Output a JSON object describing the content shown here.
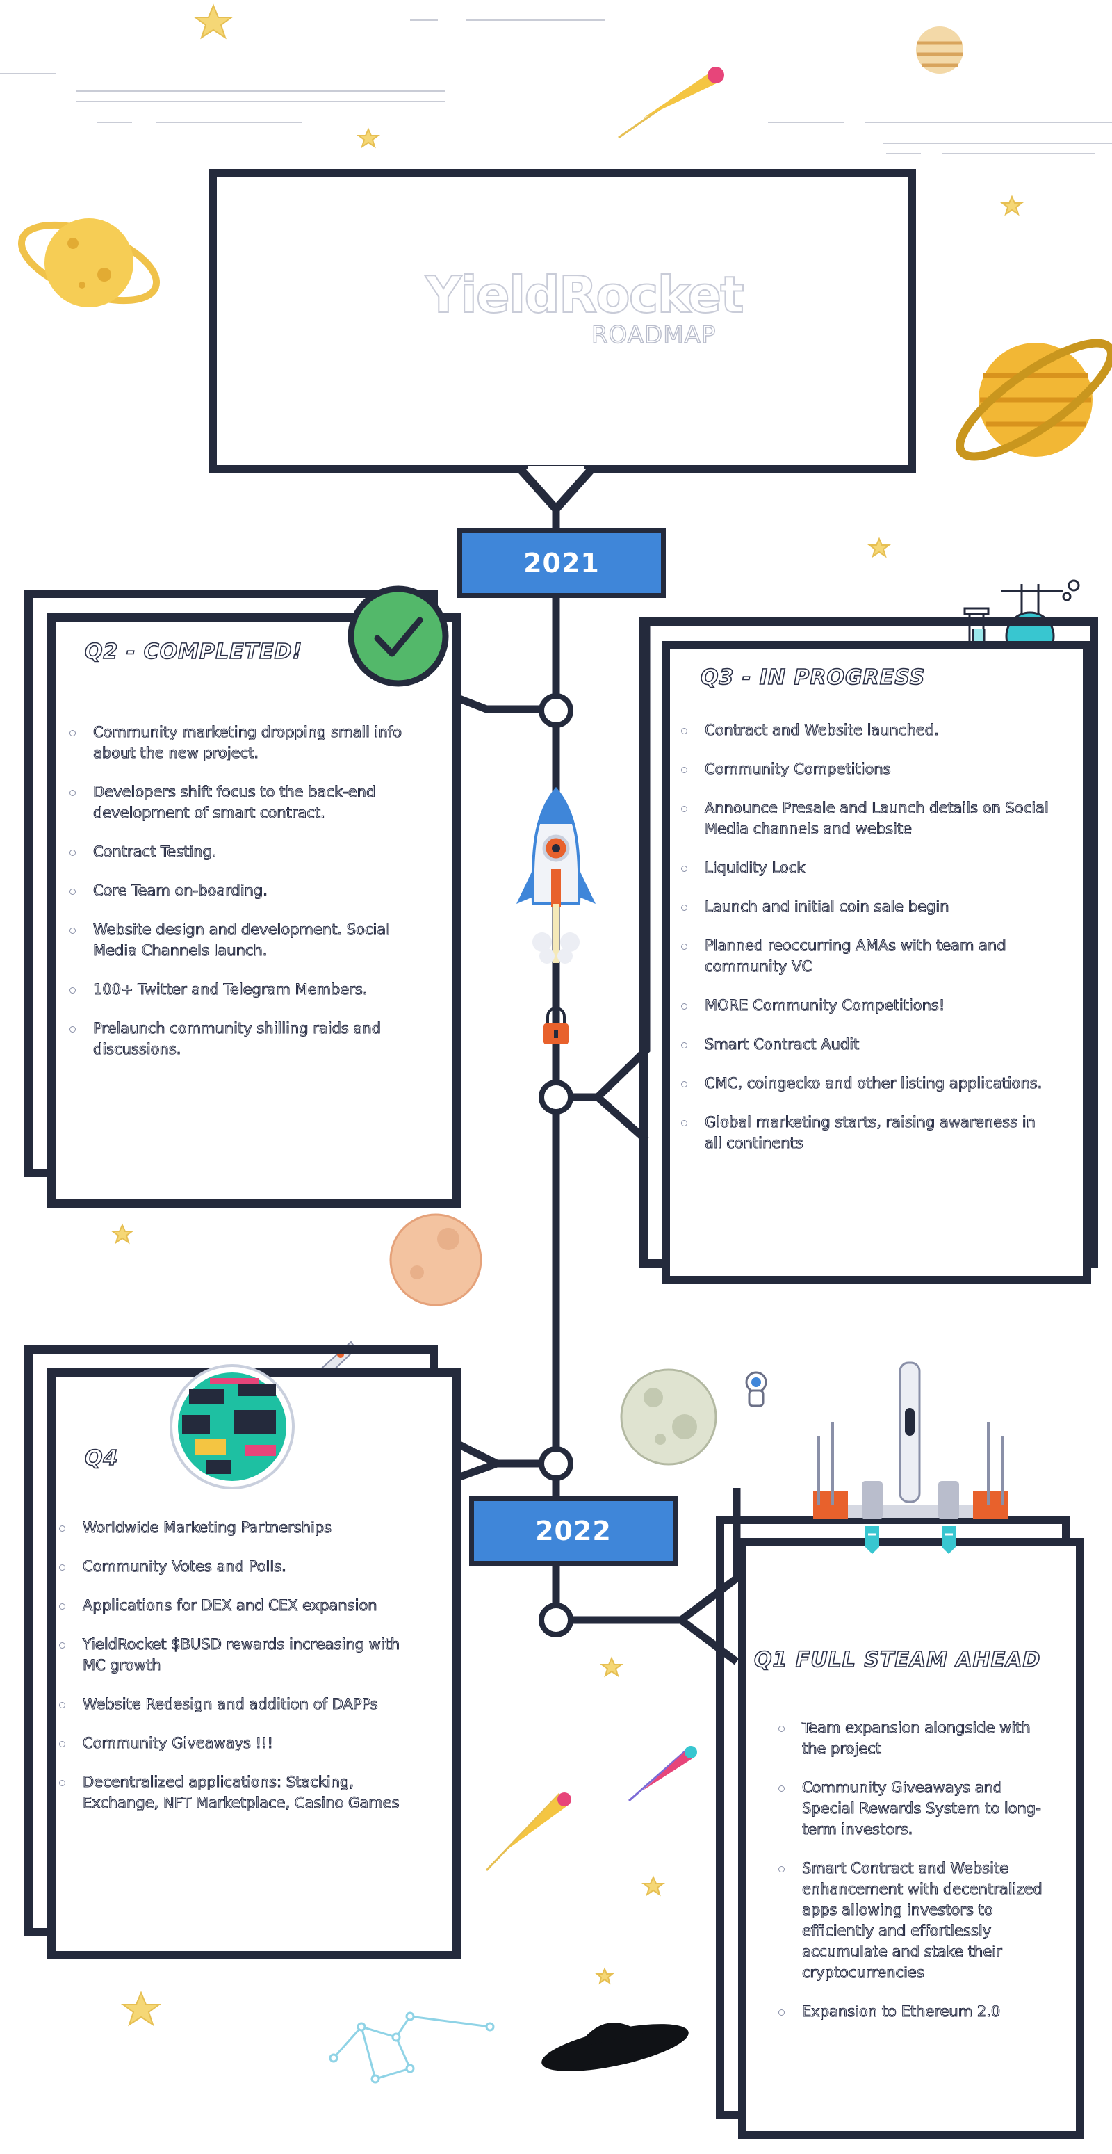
{
  "header": {
    "brand": "YieldRocket",
    "subtitle": "ROADMAP"
  },
  "years": {
    "first": "2021",
    "second": "2022"
  },
  "cards": {
    "q2": {
      "title": "Q2 - COMPLETED!",
      "items": [
        "Community marketing dropping small info about the new project.",
        "Developers shift focus to the back-end development of smart contract.",
        "Contract Testing.",
        "Core Team on-boarding.",
        "Website design and development. Social Media Channels launch.",
        "100+ Twitter and Telegram Members.",
        "Prelaunch community shilling raids and discussions."
      ]
    },
    "q3": {
      "title": "Q3 - IN PROGRESS",
      "items": [
        "Contract and Website launched.",
        "Community Competitions",
        "Announce Presale and Launch details on Social Media channels and website",
        "Liquidity Lock",
        "Launch and initial coin sale begin",
        "Planned reoccurring AMAs with team and community VC",
        "MORE Community Competitions!",
        "Smart Contract Audit",
        "CMC, coingecko and other listing applications.",
        "Global marketing starts, raising awareness in all continents"
      ]
    },
    "q4": {
      "title": "Q4",
      "items": [
        "Worldwide Marketing Partnerships",
        "Community Votes and Polls.",
        "Applications for DEX and CEX expansion",
        "YieldRocket $BUSD rewards increasing with MC growth",
        "Website Redesign and addition of DAPPs",
        "Community Giveaways !!!",
        "Decentralized applications: Stacking, Exchange, NFT Marketplace, Casino Games"
      ]
    },
    "q1": {
      "title": "Q1 FULL STEAM AHEAD",
      "items": [
        "Team expansion alongside with the project",
        "Community Giveaways and Special Rewards System to long-term investors.",
        "Smart Contract and Website enhancement with decentralized apps allowing investors to efficiently and effortlessly accumulate and stake their cryptocurrencies",
        "Expansion to Ethereum 2.0"
      ]
    }
  },
  "colors": {
    "navy": "#242a3c",
    "blue": "#3f86d9",
    "green": "#53b86a",
    "orange": "#e8612c",
    "yellow": "#f4c542"
  }
}
